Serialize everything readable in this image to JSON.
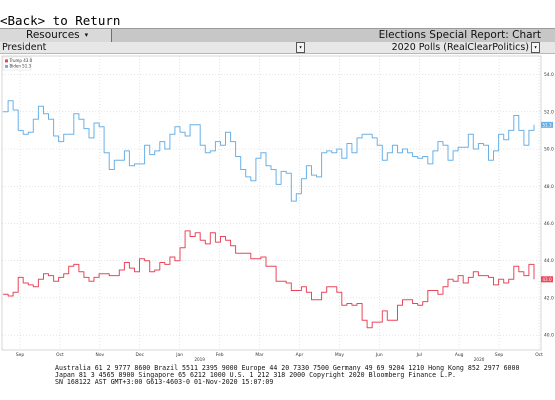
{
  "header": {
    "back_text": "<Back> to Return",
    "resources_label": "Resources",
    "resources_arrow": "▾",
    "report_title": "Elections Special Report: Chart"
  },
  "selectors": {
    "race_value": "President",
    "source_value": "2020 Polls (RealClearPolitics)",
    "dropdown_glyph": "▾"
  },
  "colors": {
    "trump": "#e8475a",
    "biden": "#6ab0e6",
    "trump_tag_bg": "#e8475a",
    "biden_tag_bg": "#6ab0e6",
    "grid": "#c8c8c8"
  },
  "chart_data": {
    "type": "line",
    "x_labels": [
      "Sep",
      "Oct",
      "Nov",
      "Dec",
      "Jan",
      "Feb",
      "Mar",
      "Apr",
      "May",
      "Jun",
      "Jul",
      "Aug",
      "Sep",
      "Oct"
    ],
    "year_labels": [
      "2019",
      "2020"
    ],
    "y_ticks": [
      40.0,
      42.0,
      44.0,
      46.0,
      48.0,
      50.0,
      52.0,
      54.0
    ],
    "ylim": [
      39.2,
      55.0
    ],
    "legend": [
      {
        "name": "Trump",
        "value": "43.0"
      },
      {
        "name": "Biden",
        "value": "51.3"
      }
    ],
    "last_value_tags": [
      "43.0",
      "51.3"
    ],
    "series": [
      {
        "name": "Biden",
        "values": [
          52.0,
          52.6,
          52.1,
          51.0,
          50.8,
          50.9,
          51.6,
          52.3,
          51.9,
          51.6,
          50.7,
          50.4,
          50.8,
          50.8,
          51.9,
          51.6,
          51.1,
          50.6,
          51.4,
          51.2,
          49.8,
          48.9,
          49.4,
          49.4,
          49.9,
          49.1,
          49.2,
          49.2,
          50.2,
          49.7,
          49.9,
          50.4,
          50.0,
          50.8,
          51.2,
          50.9,
          50.7,
          51.3,
          51.3,
          50.2,
          49.8,
          49.9,
          50.4,
          50.2,
          50.9,
          50.4,
          49.6,
          48.9,
          48.5,
          48.3,
          49.5,
          49.8,
          49.1,
          48.9,
          48.1,
          48.8,
          48.7,
          47.2,
          47.6,
          48.4,
          49.1,
          48.6,
          48.5,
          49.8,
          49.9,
          49.8,
          50.0,
          49.5,
          50.3,
          49.8,
          50.6,
          50.8,
          50.8,
          50.6,
          50.2,
          49.4,
          49.8,
          50.2,
          49.8,
          50.0,
          49.8,
          49.6,
          49.5,
          49.6,
          49.2,
          49.9,
          50.4,
          50.2,
          49.4,
          49.9,
          50.1,
          50.1,
          50.8,
          50.0,
          50.3,
          50.2,
          49.4,
          49.9,
          50.8,
          50.5,
          51.0,
          51.8,
          51.0,
          50.2,
          51.0,
          51.3
        ]
      },
      {
        "name": "Trump",
        "values": [
          42.2,
          42.1,
          42.3,
          43.1,
          42.8,
          42.7,
          42.6,
          43.0,
          43.3,
          43.2,
          42.9,
          43.1,
          43.3,
          43.7,
          43.8,
          43.4,
          43.1,
          42.9,
          43.1,
          43.3,
          43.3,
          43.2,
          43.2,
          43.5,
          43.9,
          43.6,
          43.4,
          44.1,
          44.0,
          43.4,
          43.5,
          43.9,
          43.8,
          44.2,
          44.0,
          44.7,
          45.6,
          45.3,
          45.5,
          45.1,
          44.9,
          45.5,
          45.0,
          45.3,
          45.1,
          44.8,
          44.4,
          44.4,
          44.4,
          44.1,
          44.1,
          44.2,
          43.7,
          43.7,
          42.9,
          42.9,
          42.8,
          42.4,
          42.4,
          42.6,
          42.3,
          41.9,
          41.9,
          42.3,
          42.6,
          42.6,
          42.3,
          41.6,
          41.7,
          41.6,
          41.7,
          40.8,
          40.4,
          40.7,
          40.7,
          41.3,
          40.8,
          40.8,
          41.6,
          41.9,
          41.9,
          41.7,
          41.6,
          41.8,
          42.4,
          42.4,
          42.2,
          42.6,
          43.0,
          42.9,
          43.2,
          42.8,
          43.1,
          43.4,
          43.2,
          43.2,
          43.1,
          42.7,
          43.0,
          42.8,
          43.0,
          43.7,
          43.4,
          43.2,
          43.8,
          43.0
        ]
      }
    ]
  },
  "footer": {
    "line1": "Australia 61 2 9777 8600 Brazil 5511 2395 9000 Europe 44 20 7330 7500 Germany 49 69 9204 1210 Hong Kong 852 2977 6000",
    "line2": "Japan 81 3 4565 8900        Singapore 65 6212 1000        U.S. 1 212 318 2000        Copyright 2020 Bloomberg Finance L.P.",
    "line3": "SN 168122 AST  GMT+3:00 G613-4603-0 01-Nov-2020 15:07:09"
  }
}
